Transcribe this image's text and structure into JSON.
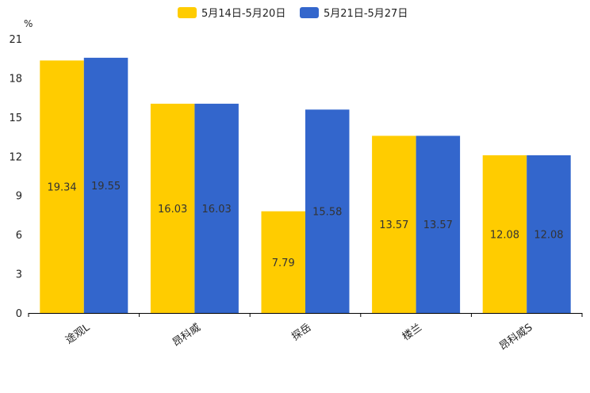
{
  "chart_data": {
    "type": "bar",
    "title": "",
    "xlabel": "",
    "ylabel": "",
    "unit": "%",
    "ylim": [
      0,
      21
    ],
    "yticks": [
      0,
      3,
      6,
      9,
      12,
      15,
      18,
      21
    ],
    "categories": [
      "途观L",
      "昂科威",
      "探岳",
      "楼兰",
      "昂科威S"
    ],
    "series": [
      {
        "name": "5月14日-5月20日",
        "color": "#FFCC00",
        "values": [
          19.34,
          16.03,
          7.79,
          13.57,
          12.08
        ]
      },
      {
        "name": "5月21日-5月27日",
        "color": "#3366CC",
        "values": [
          19.55,
          16.03,
          15.58,
          13.57,
          12.08
        ]
      }
    ],
    "legend_position": "top-center",
    "grid": false
  }
}
